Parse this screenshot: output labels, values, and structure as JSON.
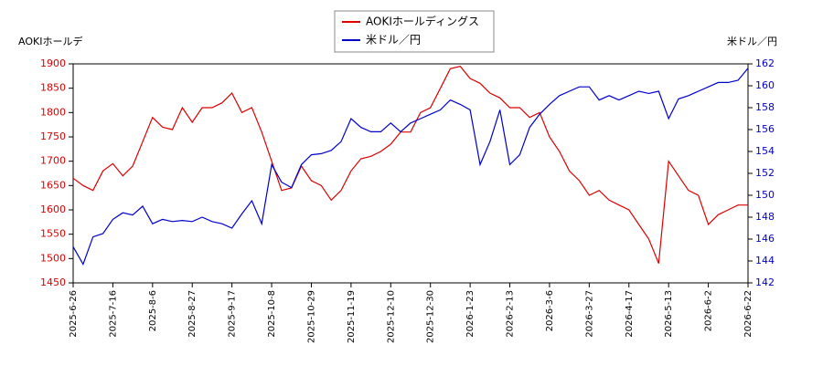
{
  "chart_data": {
    "type": "line",
    "y_label": "AOKIホールデ",
    "y2_label": "米ドル／円",
    "x": [
      "2025-6-26",
      "2025-7-1",
      "2025-7-7",
      "2025-7-11",
      "2025-7-16",
      "2025-7-22",
      "2025-7-28",
      "2025-8-1",
      "2025-8-6",
      "2025-8-12",
      "2025-8-18",
      "2025-8-22",
      "2025-8-27",
      "2025-9-2",
      "2025-9-8",
      "2025-9-12",
      "2025-9-17",
      "2025-9-23",
      "2025-9-29",
      "2025-10-3",
      "2025-10-8",
      "2025-10-14",
      "2025-10-20",
      "2025-10-24",
      "2025-10-29",
      "2025-11-4",
      "2025-11-10",
      "2025-11-14",
      "2025-11-19",
      "2025-11-25",
      "2025-12-1",
      "2025-12-5",
      "2025-12-10",
      "2025-12-16",
      "2025-12-22",
      "2025-12-26",
      "2025-12-30",
      "2026-1-6",
      "2026-1-12",
      "2026-1-16",
      "2026-1-23",
      "2026-1-29",
      "2026-2-4",
      "2026-2-9",
      "2026-2-13",
      "2026-2-19",
      "2026-2-25",
      "2026-3-2",
      "2026-3-6",
      "2026-3-12",
      "2026-3-18",
      "2026-3-23",
      "2026-3-27",
      "2026-4-2",
      "2026-4-8",
      "2026-4-13",
      "2026-4-17",
      "2026-4-23",
      "2026-4-29",
      "2026-5-7",
      "2026-5-13",
      "2026-5-19",
      "2026-5-25",
      "2026-5-28",
      "2026-6-2",
      "2026-6-8",
      "2026-6-12",
      "2026-6-17",
      "2026-6-22"
    ],
    "xticks": [
      "2025-6-26",
      "2025-7-16",
      "2025-8-6",
      "2025-8-27",
      "2025-9-17",
      "2025-10-8",
      "2025-10-29",
      "2025-11-19",
      "2025-12-10",
      "2025-12-30",
      "2026-1-23",
      "2026-2-13",
      "2026-3-6",
      "2026-3-27",
      "2026-4-17",
      "2026-5-13",
      "2026-6-2",
      "2026-6-22"
    ],
    "ylim": [
      1450,
      1900
    ],
    "yticks": [
      1450,
      1500,
      1550,
      1600,
      1650,
      1700,
      1750,
      1800,
      1850,
      1900
    ],
    "y2lim": [
      142,
      162
    ],
    "y2ticks": [
      142,
      144,
      146,
      148,
      150,
      152,
      154,
      156,
      158,
      160,
      162
    ],
    "series": [
      {
        "name": "AOKIホールディングス",
        "color": "#dd0000",
        "values": [
          1665,
          1650,
          1640,
          1680,
          1695,
          1670,
          1690,
          1740,
          1790,
          1770,
          1765,
          1810,
          1780,
          1810,
          1810,
          1820,
          1840,
          1800,
          1810,
          1760,
          1700,
          1640,
          1645,
          1690,
          1660,
          1650,
          1620,
          1640,
          1680,
          1705,
          1710,
          1720,
          1735,
          1760,
          1760,
          1800,
          1810,
          1850,
          1890,
          1895,
          1870,
          1860,
          1840,
          1830,
          1810,
          1810,
          1790,
          1800,
          1750,
          1720,
          1680,
          1660,
          1630,
          1640,
          1620,
          1610,
          1600,
          1570,
          1540,
          1490,
          1700,
          1670,
          1640,
          1630,
          1570,
          1590,
          1600,
          1610,
          1610
        ]
      },
      {
        "name": "米ドル／円",
        "color": "#0000cc",
        "axis": "y2",
        "values": [
          145.3,
          143.7,
          146.2,
          146.5,
          147.8,
          148.4,
          148.2,
          149,
          147.4,
          147.8,
          147.6,
          147.7,
          147.6,
          148,
          147.6,
          147.4,
          147,
          148.3,
          149.5,
          147.4,
          152.8,
          151.2,
          150.7,
          152.8,
          153.7,
          153.8,
          154.1,
          154.9,
          157,
          156.2,
          155.8,
          155.8,
          156.6,
          155.8,
          156.6,
          157,
          157.4,
          157.8,
          158.7,
          158.3,
          157.8,
          152.8,
          154.9,
          157.8,
          152.8,
          153.7,
          156.2,
          157.4,
          158.3,
          159.1,
          159.5,
          159.9,
          159.9,
          158.7,
          159.1,
          158.7,
          159.1,
          159.5,
          159.3,
          159.5,
          157,
          158.8,
          159.1,
          159.5,
          159.9,
          160.3,
          160.3,
          160.5,
          161.6
        ]
      }
    ],
    "legend": "top"
  }
}
